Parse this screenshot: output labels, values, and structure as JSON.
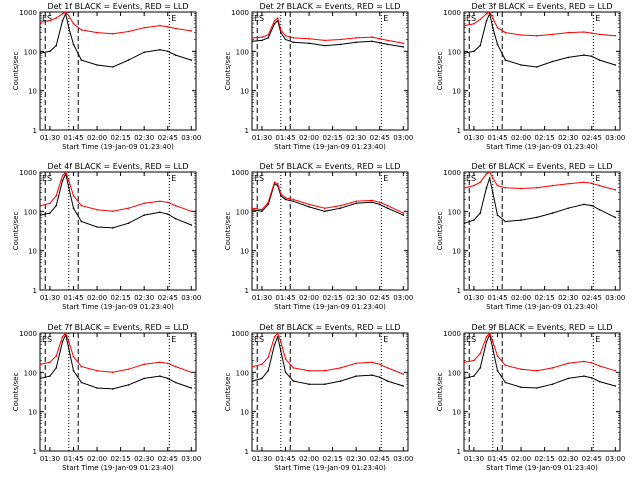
{
  "figure": {
    "common_ylabel": "Counts/sec",
    "common_xlabel": "Start Time (19-Jan-09 01:23:40)",
    "xtick_labels": [
      "01:30",
      "01:45",
      "02:00",
      "02:15",
      "02:30",
      "02:45",
      "03:00"
    ],
    "ytick_labels": [
      "1",
      "10",
      "100",
      "1000"
    ],
    "colors": {
      "events": "#000000",
      "lld": "#ff0000"
    }
  },
  "chart_data": [
    {
      "type": "line",
      "title": "Det 1f BLACK = Events, RED = LLD",
      "markers": [
        "ES",
        "E"
      ],
      "xlim": [
        "01:23:40",
        "03:03:00"
      ],
      "ylim": [
        1,
        1000
      ],
      "yscale": "log",
      "series": [
        {
          "name": "Events",
          "color": "#000000",
          "x": [
            "01:24",
            "01:30",
            "01:34",
            "01:38",
            "01:40",
            "01:42",
            "01:45",
            "01:50",
            "02:00",
            "02:10",
            "02:20",
            "02:30",
            "02:40",
            "02:45",
            "02:50",
            "03:00"
          ],
          "values": [
            90,
            100,
            140,
            600,
            900,
            400,
            150,
            60,
            45,
            40,
            60,
            95,
            110,
            100,
            80,
            60
          ]
        },
        {
          "name": "LLD",
          "color": "#ff0000",
          "x": [
            "01:24",
            "01:30",
            "01:34",
            "01:38",
            "01:40",
            "01:42",
            "01:45",
            "01:50",
            "02:00",
            "02:10",
            "02:20",
            "02:30",
            "02:40",
            "02:45",
            "02:50",
            "03:00"
          ],
          "values": [
            550,
            600,
            700,
            900,
            1000,
            800,
            500,
            350,
            300,
            280,
            320,
            400,
            450,
            420,
            380,
            330
          ]
        }
      ]
    },
    {
      "type": "line",
      "title": "Det 2f BLACK = Events, RED = LLD",
      "markers": [
        "ES",
        "E"
      ],
      "xlim": [
        "01:23:40",
        "03:03:00"
      ],
      "ylim": [
        1,
        1000
      ],
      "yscale": "log",
      "series": [
        {
          "name": "Events",
          "color": "#000000",
          "x": [
            "01:24",
            "01:30",
            "01:34",
            "01:38",
            "01:40",
            "01:42",
            "01:45",
            "01:50",
            "02:00",
            "02:10",
            "02:20",
            "02:30",
            "02:40",
            "02:45",
            "02:50",
            "03:00"
          ],
          "values": [
            180,
            190,
            220,
            500,
            600,
            300,
            200,
            170,
            160,
            140,
            150,
            170,
            180,
            165,
            150,
            130
          ]
        },
        {
          "name": "LLD",
          "color": "#ff0000",
          "x": [
            "01:24",
            "01:30",
            "01:34",
            "01:38",
            "01:40",
            "01:42",
            "01:45",
            "01:50",
            "02:00",
            "02:10",
            "02:20",
            "02:30",
            "02:40",
            "02:45",
            "02:50",
            "03:00"
          ],
          "values": [
            220,
            230,
            260,
            600,
            700,
            350,
            250,
            220,
            210,
            190,
            200,
            220,
            230,
            210,
            190,
            160
          ]
        }
      ]
    },
    {
      "type": "line",
      "title": "Det 3f BLACK = Events, RED = LLD",
      "markers": [
        "ES",
        "E"
      ],
      "xlim": [
        "01:23:40",
        "03:03:00"
      ],
      "ylim": [
        1,
        1000
      ],
      "yscale": "log",
      "series": [
        {
          "name": "Events",
          "color": "#000000",
          "x": [
            "01:24",
            "01:30",
            "01:34",
            "01:38",
            "01:40",
            "01:42",
            "01:45",
            "01:50",
            "02:00",
            "02:10",
            "02:20",
            "02:30",
            "02:40",
            "02:45",
            "02:50",
            "03:00"
          ],
          "values": [
            90,
            100,
            140,
            600,
            900,
            400,
            150,
            60,
            45,
            40,
            55,
            70,
            80,
            75,
            60,
            45
          ]
        },
        {
          "name": "LLD",
          "color": "#ff0000",
          "x": [
            "01:24",
            "01:30",
            "01:34",
            "01:38",
            "01:40",
            "01:42",
            "01:45",
            "01:50",
            "02:00",
            "02:10",
            "02:20",
            "02:30",
            "02:40",
            "02:45",
            "02:50",
            "03:00"
          ],
          "values": [
            450,
            500,
            650,
            900,
            1000,
            700,
            400,
            300,
            260,
            250,
            270,
            300,
            310,
            290,
            270,
            250
          ]
        }
      ]
    },
    {
      "type": "line",
      "title": "Det 4f BLACK = Events, RED = LLD",
      "markers": [
        "ES",
        "E"
      ],
      "xlim": [
        "01:23:40",
        "03:03:00"
      ],
      "ylim": [
        1,
        1000
      ],
      "yscale": "log",
      "series": [
        {
          "name": "Events",
          "color": "#000000",
          "x": [
            "01:24",
            "01:30",
            "01:34",
            "01:38",
            "01:40",
            "01:42",
            "01:45",
            "01:50",
            "02:00",
            "02:10",
            "02:20",
            "02:30",
            "02:40",
            "02:45",
            "02:50",
            "03:00"
          ],
          "values": [
            80,
            90,
            140,
            600,
            900,
            400,
            120,
            55,
            40,
            38,
            50,
            80,
            95,
            85,
            65,
            45
          ]
        },
        {
          "name": "LLD",
          "color": "#ff0000",
          "x": [
            "01:24",
            "01:30",
            "01:34",
            "01:38",
            "01:40",
            "01:42",
            "01:45",
            "01:50",
            "02:00",
            "02:10",
            "02:20",
            "02:30",
            "02:40",
            "02:45",
            "02:50",
            "03:00"
          ],
          "values": [
            140,
            160,
            250,
            800,
            1000,
            600,
            250,
            140,
            110,
            100,
            120,
            160,
            180,
            170,
            140,
            100
          ]
        }
      ]
    },
    {
      "type": "line",
      "title": "Det 5f BLACK = Events, RED = LLD",
      "markers": [
        "ES",
        "E"
      ],
      "xlim": [
        "01:23:40",
        "03:03:00"
      ],
      "ylim": [
        1,
        1000
      ],
      "yscale": "log",
      "series": [
        {
          "name": "Events",
          "color": "#000000",
          "x": [
            "01:24",
            "01:30",
            "01:34",
            "01:38",
            "01:40",
            "01:42",
            "01:45",
            "01:50",
            "02:00",
            "02:10",
            "02:20",
            "02:30",
            "02:40",
            "02:45",
            "02:50",
            "03:00"
          ],
          "values": [
            110,
            100,
            150,
            500,
            450,
            250,
            200,
            180,
            130,
            100,
            120,
            160,
            170,
            150,
            120,
            80
          ]
        },
        {
          "name": "LLD",
          "color": "#ff0000",
          "x": [
            "01:24",
            "01:30",
            "01:34",
            "01:38",
            "01:40",
            "01:42",
            "01:45",
            "01:50",
            "02:00",
            "02:10",
            "02:20",
            "02:30",
            "02:40",
            "02:45",
            "02:50",
            "03:00"
          ],
          "values": [
            120,
            110,
            170,
            550,
            500,
            280,
            220,
            200,
            150,
            120,
            140,
            180,
            190,
            170,
            140,
            90
          ]
        }
      ]
    },
    {
      "type": "line",
      "title": "Det 6f BLACK = Events, RED = LLD",
      "markers": [
        "ES",
        "E"
      ],
      "xlim": [
        "01:23:40",
        "03:03:00"
      ],
      "ylim": [
        1,
        1000
      ],
      "yscale": "log",
      "series": [
        {
          "name": "Events",
          "color": "#000000",
          "x": [
            "01:24",
            "01:30",
            "01:34",
            "01:38",
            "01:40",
            "01:42",
            "01:45",
            "01:50",
            "02:00",
            "02:10",
            "02:20",
            "02:30",
            "02:40",
            "02:45",
            "02:50",
            "03:00"
          ],
          "values": [
            50,
            60,
            90,
            400,
            700,
            300,
            80,
            55,
            60,
            70,
            90,
            120,
            150,
            140,
            110,
            70
          ]
        },
        {
          "name": "LLD",
          "color": "#ff0000",
          "x": [
            "01:24",
            "01:30",
            "01:34",
            "01:38",
            "01:40",
            "01:42",
            "01:45",
            "01:50",
            "02:00",
            "02:10",
            "02:20",
            "02:30",
            "02:40",
            "02:45",
            "02:50",
            "03:00"
          ],
          "values": [
            400,
            450,
            550,
            900,
            1000,
            700,
            450,
            400,
            380,
            400,
            450,
            500,
            550,
            520,
            450,
            350
          ]
        }
      ]
    },
    {
      "type": "line",
      "title": "Det 7f BLACK = Events, RED = LLD",
      "markers": [
        "ES",
        "E"
      ],
      "xlim": [
        "01:23:40",
        "03:03:00"
      ],
      "ylim": [
        1,
        1000
      ],
      "yscale": "log",
      "series": [
        {
          "name": "Events",
          "color": "#000000",
          "x": [
            "01:24",
            "01:30",
            "01:34",
            "01:38",
            "01:40",
            "01:42",
            "01:45",
            "01:50",
            "02:00",
            "02:10",
            "02:20",
            "02:30",
            "02:40",
            "02:45",
            "02:50",
            "03:00"
          ],
          "values": [
            70,
            80,
            130,
            600,
            900,
            400,
            110,
            55,
            40,
            38,
            48,
            70,
            80,
            70,
            55,
            40
          ]
        },
        {
          "name": "LLD",
          "color": "#ff0000",
          "x": [
            "01:24",
            "01:30",
            "01:34",
            "01:38",
            "01:40",
            "01:42",
            "01:45",
            "01:50",
            "02:00",
            "02:10",
            "02:20",
            "02:30",
            "02:40",
            "02:45",
            "02:50",
            "03:00"
          ],
          "values": [
            160,
            180,
            260,
            800,
            1000,
            600,
            250,
            140,
            110,
            100,
            120,
            160,
            180,
            170,
            140,
            100
          ]
        }
      ]
    },
    {
      "type": "line",
      "title": "Det 8f BLACK = Events, RED = LLD",
      "markers": [
        "ES",
        "E"
      ],
      "xlim": [
        "01:23:40",
        "03:03:00"
      ],
      "ylim": [
        1,
        1000
      ],
      "yscale": "log",
      "series": [
        {
          "name": "Events",
          "color": "#000000",
          "x": [
            "01:24",
            "01:30",
            "01:34",
            "01:38",
            "01:40",
            "01:42",
            "01:45",
            "01:50",
            "02:00",
            "02:10",
            "02:20",
            "02:30",
            "02:40",
            "02:45",
            "02:50",
            "03:00"
          ],
          "values": [
            60,
            70,
            110,
            500,
            800,
            350,
            100,
            60,
            50,
            50,
            60,
            80,
            85,
            75,
            60,
            45
          ]
        },
        {
          "name": "LLD",
          "color": "#ff0000",
          "x": [
            "01:24",
            "01:30",
            "01:34",
            "01:38",
            "01:40",
            "01:42",
            "01:45",
            "01:50",
            "02:00",
            "02:10",
            "02:20",
            "02:30",
            "02:40",
            "02:45",
            "02:50",
            "03:00"
          ],
          "values": [
            140,
            160,
            240,
            800,
            1000,
            600,
            220,
            130,
            110,
            110,
            130,
            170,
            180,
            160,
            130,
            90
          ]
        }
      ]
    },
    {
      "type": "line",
      "title": "Det 9f BLACK = Events, RED = LLD",
      "markers": [
        "ES",
        "E"
      ],
      "xlim": [
        "01:23:40",
        "03:03:00"
      ],
      "ylim": [
        1,
        1000
      ],
      "yscale": "log",
      "series": [
        {
          "name": "Events",
          "color": "#000000",
          "x": [
            "01:24",
            "01:30",
            "01:34",
            "01:38",
            "01:40",
            "01:42",
            "01:45",
            "01:50",
            "02:00",
            "02:10",
            "02:20",
            "02:30",
            "02:40",
            "02:45",
            "02:50",
            "03:00"
          ],
          "values": [
            70,
            80,
            130,
            600,
            900,
            400,
            110,
            55,
            42,
            40,
            50,
            70,
            80,
            72,
            58,
            45
          ]
        },
        {
          "name": "LLD",
          "color": "#ff0000",
          "x": [
            "01:24",
            "01:30",
            "01:34",
            "01:38",
            "01:40",
            "01:42",
            "01:45",
            "01:50",
            "02:00",
            "02:10",
            "02:20",
            "02:30",
            "02:40",
            "02:45",
            "02:50",
            "03:00"
          ],
          "values": [
            180,
            200,
            300,
            800,
            1000,
            600,
            260,
            150,
            120,
            110,
            130,
            170,
            190,
            175,
            145,
            110
          ]
        }
      ]
    }
  ]
}
